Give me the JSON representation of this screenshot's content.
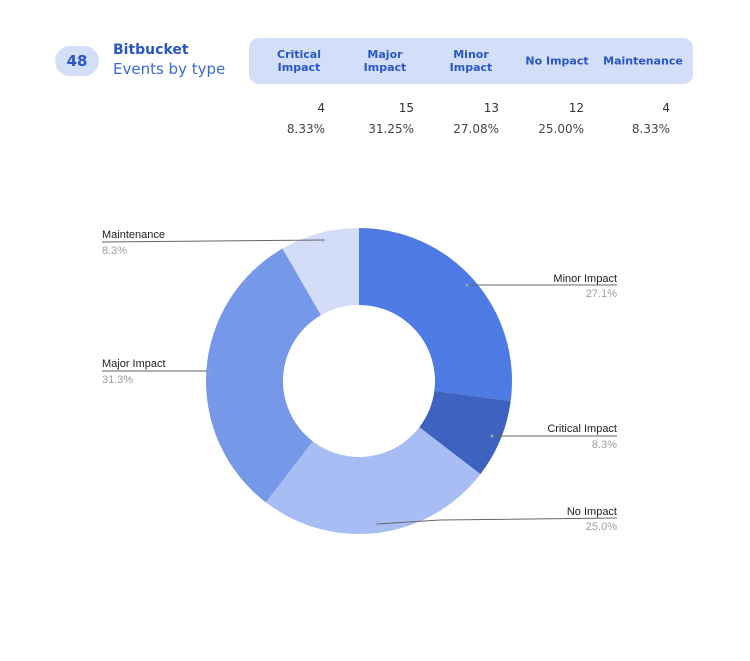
{
  "header": {
    "total_count": "48",
    "app_name": "Bitbucket",
    "subtitle": "Events by type"
  },
  "table": {
    "columns": [
      {
        "label_line1": "Critical",
        "label_line2": "Impact",
        "count": "4",
        "percent": "8.33%"
      },
      {
        "label_line1": "Major",
        "label_line2": "Impact",
        "count": "15",
        "percent": "31.25%"
      },
      {
        "label_line1": "Minor",
        "label_line2": "Impact",
        "count": "13",
        "percent": "27.08%"
      },
      {
        "label_line1": "No Impact",
        "label_line2": "",
        "count": "12",
        "percent": "25.00%"
      },
      {
        "label_line1": "Maintenance",
        "label_line2": "",
        "count": "4",
        "percent": "8.33%"
      }
    ]
  },
  "chart_labels": {
    "minor": {
      "name": "Minor Impact",
      "pct": "27.1%"
    },
    "critical": {
      "name": "Critical Impact",
      "pct": "8.3%"
    },
    "none": {
      "name": "No Impact",
      "pct": "25.0%"
    },
    "major": {
      "name": "Major Impact",
      "pct": "31.3%"
    },
    "maintenance": {
      "name": "Maintenance",
      "pct": "8.3%"
    }
  },
  "colors": {
    "accent": "#2a56c6",
    "band": "#d3def8",
    "minor": "#4e7be3",
    "critical": "#3e62c0",
    "none": "#a8bdf3",
    "major": "#7698e8",
    "maintenance": "#d3ddf7"
  },
  "chart_data": {
    "type": "pie",
    "subtype": "donut",
    "title": "Bitbucket Events by type",
    "total": 48,
    "categories": [
      "Minor Impact",
      "Critical Impact",
      "No Impact",
      "Major Impact",
      "Maintenance"
    ],
    "values": [
      13,
      4,
      12,
      15,
      4
    ],
    "percent_labels": [
      "27.1%",
      "8.3%",
      "25.0%",
      "31.3%",
      "8.3%"
    ],
    "start_angle": "12 o'clock, clockwise",
    "legend": "none (callout labels)"
  }
}
